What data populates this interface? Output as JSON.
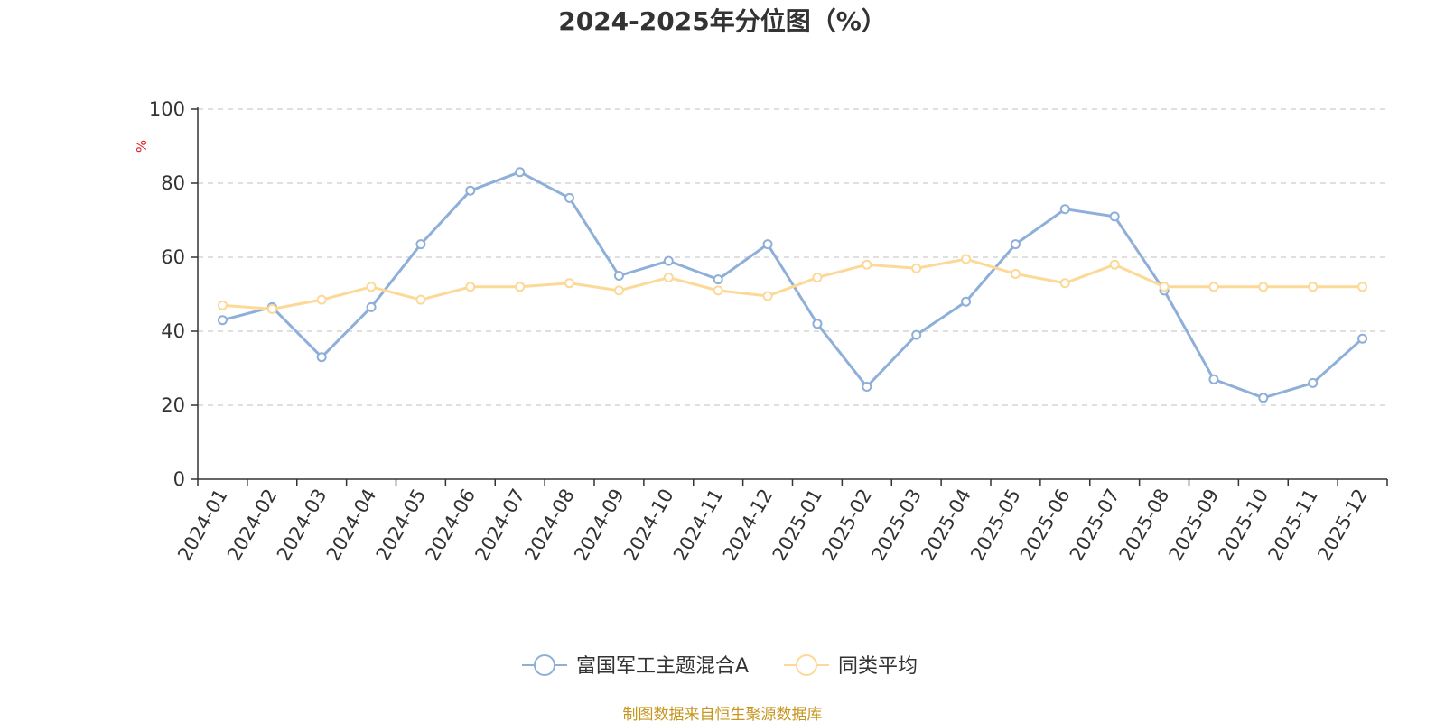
{
  "chart_data": {
    "type": "line",
    "title": "2024-2025年分位图（%）",
    "ylabel": "%",
    "xlabel": "",
    "ylim": [
      0,
      100
    ],
    "yticks": [
      0,
      20,
      40,
      60,
      80,
      100
    ],
    "grid": true,
    "legend_position": "bottom",
    "categories": [
      "2024-01",
      "2024-02",
      "2024-03",
      "2024-04",
      "2024-05",
      "2024-06",
      "2024-07",
      "2024-08",
      "2024-09",
      "2024-10",
      "2024-11",
      "2024-12",
      "2025-01",
      "2025-02",
      "2025-03",
      "2025-04",
      "2025-05",
      "2025-06",
      "2025-07",
      "2025-08",
      "2025-09",
      "2025-10",
      "2025-11",
      "2025-12"
    ],
    "series": [
      {
        "name": "富国军工主题混合A",
        "color": "#8eafd9",
        "values": [
          43,
          46.5,
          33,
          46.5,
          63.5,
          78,
          83,
          76,
          55,
          59,
          54,
          63.5,
          42,
          25,
          39,
          48,
          63.5,
          73,
          71,
          51,
          27,
          22,
          26,
          38
        ]
      },
      {
        "name": "同类平均",
        "color": "#fcd997",
        "values": [
          47,
          46,
          48.5,
          52,
          48.5,
          52,
          52,
          53,
          51,
          54.5,
          51,
          49.5,
          54.5,
          58,
          57,
          59.5,
          55.5,
          53,
          58,
          52,
          52,
          52,
          52,
          52
        ]
      }
    ],
    "source": "制图数据来自恒生聚源数据库"
  }
}
